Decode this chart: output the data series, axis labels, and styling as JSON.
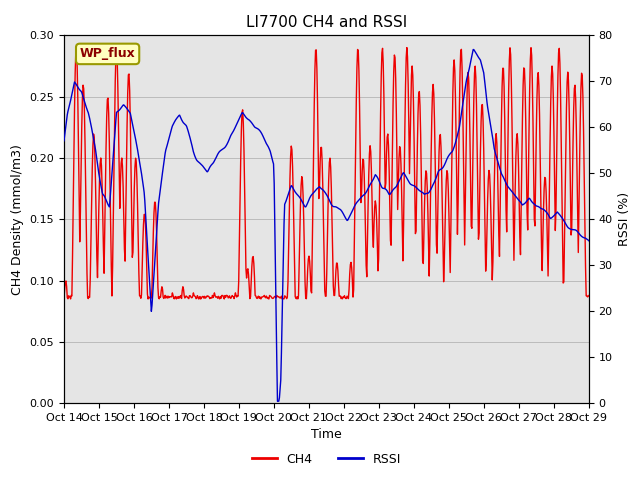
{
  "title": "LI7700 CH4 and RSSI",
  "xlabel": "Time",
  "ylabel_left": "CH4 Density (mmol/m3)",
  "ylabel_right": "RSSI (%)",
  "annotation_text": "WP_flux",
  "annotation_bg": "#FFFFC0",
  "annotation_border": "#999900",
  "ylim_left": [
    0.0,
    0.3
  ],
  "ylim_right": [
    0,
    80
  ],
  "yticks_left": [
    0.0,
    0.05,
    0.1,
    0.15,
    0.2,
    0.25,
    0.3
  ],
  "yticks_right": [
    0,
    10,
    20,
    30,
    40,
    50,
    60,
    70,
    80
  ],
  "xtick_labels": [
    "Oct 14",
    "Oct 15",
    "Oct 16",
    "Oct 17",
    "Oct 18",
    "Oct 19",
    "Oct 20",
    "Oct 21",
    "Oct 22",
    "Oct 23",
    "Oct 24",
    "Oct 25",
    "Oct 26",
    "Oct 27",
    "Oct 28",
    "Oct 29"
  ],
  "grid_color": "#bbbbbb",
  "bg_color": "#e5e5e5",
  "ch4_color": "#EE0000",
  "rssi_color": "#0000CC",
  "line_width": 1.0,
  "title_fontsize": 11,
  "label_fontsize": 9,
  "tick_fontsize": 8,
  "legend_fontsize": 9,
  "fig_width": 6.4,
  "fig_height": 4.8,
  "dpi": 100
}
